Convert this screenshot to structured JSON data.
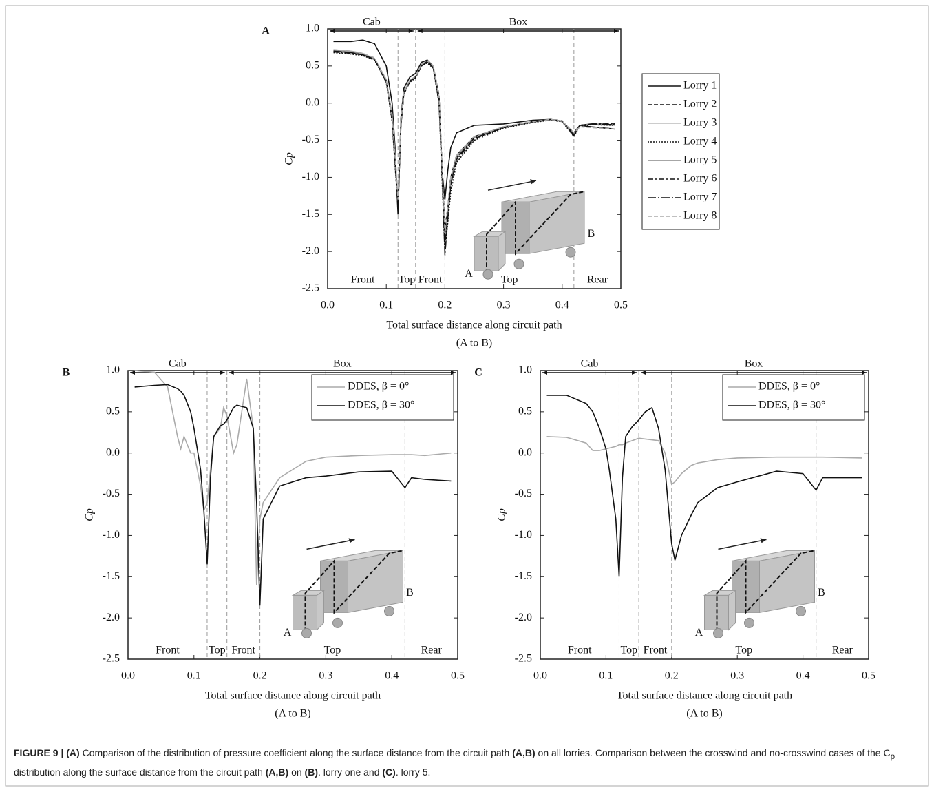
{
  "chart_data": [
    {
      "type": "line",
      "panel": "A",
      "ylabel": "Cp",
      "xlabel": [
        "Total surface distance along circuit path",
        "(A to B)"
      ],
      "xlim": [
        0,
        0.5
      ],
      "xticks": [
        {
          "value": 0,
          "label": "0.0"
        },
        0.1,
        0.2,
        0.3,
        0.4,
        0.5
      ],
      "ylim": [
        -2.5,
        1
      ],
      "yticks": [
        {
          "value": -2.5,
          "label": "-2.5"
        },
        {
          "value": -2,
          "label": "-2.0"
        },
        {
          "value": -1.5,
          "label": "-1.5"
        },
        {
          "value": -1,
          "label": "-1.0"
        },
        {
          "value": -0.5,
          "label": "-0.5"
        },
        {
          "value": 0,
          "label": "0.0"
        },
        0.5,
        {
          "value": 1,
          "label": "1.0"
        }
      ],
      "legend": "outside-right",
      "top_sections": [
        {
          "label": "Cab",
          "start": 0,
          "end": 0.15
        },
        {
          "label": "Box",
          "start": 0.15,
          "end": 0.5
        }
      ],
      "bottom_sections": [
        {
          "label": "Front",
          "start": 0,
          "end": 0.12
        },
        {
          "label": "Top",
          "start": 0.12,
          "end": 0.15
        },
        {
          "label": "Front",
          "start": 0.15,
          "end": 0.2
        },
        {
          "label": "Top",
          "start": 0.2,
          "end": 0.42
        },
        {
          "label": "Rear",
          "start": 0.42,
          "end": 0.5
        }
      ],
      "inset_labels": [
        "A",
        "B"
      ],
      "x": [
        0.01,
        0.04,
        0.06,
        0.08,
        0.1,
        0.11,
        0.115,
        0.12,
        0.125,
        0.13,
        0.14,
        0.15,
        0.16,
        0.17,
        0.18,
        0.19,
        0.195,
        0.2,
        0.205,
        0.21,
        0.22,
        0.25,
        0.3,
        0.35,
        0.38,
        0.4,
        0.42,
        0.43,
        0.45,
        0.49
      ],
      "series": [
        {
          "name": "Lorry 1",
          "color": "#111111",
          "dash": "solid",
          "values": [
            0.83,
            0.83,
            0.85,
            0.8,
            0.5,
            0.0,
            -0.6,
            -1.5,
            -0.2,
            0.2,
            0.35,
            0.4,
            0.55,
            0.58,
            0.5,
            0.0,
            -0.9,
            -1.3,
            -0.9,
            -0.6,
            -0.4,
            -0.3,
            -0.28,
            -0.23,
            -0.22,
            -0.25,
            -0.4,
            -0.3,
            -0.32,
            -0.35
          ]
        },
        {
          "name": "Lorry 2",
          "color": "#111111",
          "dash": "dashed",
          "values": [
            0.7,
            0.68,
            0.66,
            0.6,
            0.3,
            -0.2,
            -0.8,
            -1.35,
            -0.3,
            0.15,
            0.3,
            0.35,
            0.5,
            0.55,
            0.5,
            0.1,
            -0.8,
            -1.7,
            -1.4,
            -1.0,
            -0.7,
            -0.45,
            -0.32,
            -0.25,
            -0.22,
            -0.24,
            -0.42,
            -0.3,
            -0.28,
            -0.28
          ]
        },
        {
          "name": "Lorry 3",
          "color": "#bbbbbb",
          "dash": "solid",
          "values": [
            0.72,
            0.7,
            0.67,
            0.6,
            0.32,
            -0.15,
            -0.7,
            -1.3,
            -0.25,
            0.15,
            0.3,
            0.36,
            0.52,
            0.56,
            0.48,
            0.05,
            -0.9,
            -1.8,
            -1.5,
            -1.1,
            -0.75,
            -0.47,
            -0.33,
            -0.26,
            -0.22,
            -0.25,
            -0.44,
            -0.3,
            -0.29,
            -0.3
          ]
        },
        {
          "name": "Lorry 4",
          "color": "#111111",
          "dash": "dotted",
          "values": [
            0.68,
            0.66,
            0.64,
            0.58,
            0.28,
            -0.25,
            -0.85,
            -1.4,
            -0.3,
            0.12,
            0.28,
            0.34,
            0.5,
            0.54,
            0.47,
            0.0,
            -1.0,
            -2.0,
            -1.6,
            -1.2,
            -0.8,
            -0.5,
            -0.34,
            -0.26,
            -0.23,
            -0.25,
            -0.45,
            -0.31,
            -0.29,
            -0.3
          ]
        },
        {
          "name": "Lorry 5",
          "color": "#888888",
          "dash": "solid",
          "values": [
            0.71,
            0.69,
            0.66,
            0.6,
            0.3,
            -0.2,
            -0.75,
            -1.38,
            -0.28,
            0.14,
            0.3,
            0.36,
            0.52,
            0.57,
            0.5,
            0.08,
            -0.85,
            -1.85,
            -1.45,
            -1.05,
            -0.72,
            -0.46,
            -0.32,
            -0.25,
            -0.22,
            -0.24,
            -0.43,
            -0.3,
            -0.28,
            -0.29
          ]
        },
        {
          "name": "Lorry 6",
          "color": "#111111",
          "dash": "dashdot",
          "values": [
            0.69,
            0.67,
            0.65,
            0.59,
            0.29,
            -0.22,
            -0.8,
            -1.42,
            -0.3,
            0.13,
            0.29,
            0.35,
            0.51,
            0.55,
            0.49,
            0.05,
            -0.9,
            -1.9,
            -1.5,
            -1.1,
            -0.76,
            -0.48,
            -0.33,
            -0.25,
            -0.22,
            -0.24,
            -0.44,
            -0.3,
            -0.28,
            -0.28
          ]
        },
        {
          "name": "Lorry 7",
          "color": "#111111",
          "dash": "longdashdot",
          "values": [
            0.7,
            0.68,
            0.65,
            0.59,
            0.3,
            -0.2,
            -0.78,
            -1.4,
            -0.29,
            0.14,
            0.3,
            0.35,
            0.51,
            0.56,
            0.49,
            0.06,
            -0.88,
            -2.05,
            -1.55,
            -1.1,
            -0.74,
            -0.47,
            -0.33,
            -0.25,
            -0.22,
            -0.24,
            -0.43,
            -0.3,
            -0.28,
            -0.29
          ]
        },
        {
          "name": "Lorry 8",
          "color": "#aaaaaa",
          "dash": "dashed",
          "values": [
            0.72,
            0.7,
            0.67,
            0.61,
            0.31,
            -0.18,
            -0.72,
            -1.3,
            -0.26,
            0.15,
            0.31,
            0.36,
            0.52,
            0.57,
            0.5,
            0.08,
            -0.82,
            -1.75,
            -1.4,
            -1.0,
            -0.7,
            -0.45,
            -0.32,
            -0.25,
            -0.22,
            -0.24,
            -0.4,
            -0.32,
            -0.33,
            -0.35
          ]
        }
      ]
    },
    {
      "type": "line",
      "panel": "B",
      "ylabel": "Cp",
      "xlabel": [
        "Total surface distance along circuit path",
        "(A to B)"
      ],
      "xlim": [
        0,
        0.5
      ],
      "xticks": [
        {
          "value": 0,
          "label": "0.0"
        },
        0.1,
        0.2,
        0.3,
        0.4,
        0.5
      ],
      "ylim": [
        -2.5,
        1
      ],
      "yticks": [
        {
          "value": -2.5,
          "label": "-2.5"
        },
        {
          "value": -2,
          "label": "-2.0"
        },
        {
          "value": -1.5,
          "label": "-1.5"
        },
        {
          "value": -1,
          "label": "-1.0"
        },
        {
          "value": -0.5,
          "label": "-0.5"
        },
        {
          "value": 0,
          "label": "0.0"
        },
        0.5,
        {
          "value": 1,
          "label": "1.0"
        }
      ],
      "legend": "upper-right",
      "top_sections": [
        {
          "label": "Cab",
          "start": 0,
          "end": 0.15
        },
        {
          "label": "Box",
          "start": 0.15,
          "end": 0.5
        }
      ],
      "bottom_sections": [
        {
          "label": "Front",
          "start": 0,
          "end": 0.12
        },
        {
          "label": "Top",
          "start": 0.12,
          "end": 0.15
        },
        {
          "label": "Front",
          "start": 0.15,
          "end": 0.2
        },
        {
          "label": "Top",
          "start": 0.2,
          "end": 0.42
        },
        {
          "label": "Rear",
          "start": 0.42,
          "end": 0.5
        }
      ],
      "inset_labels": [
        "A",
        "B"
      ],
      "x": [
        0.01,
        0.04,
        0.06,
        0.075,
        0.08,
        0.085,
        0.095,
        0.1,
        0.11,
        0.115,
        0.12,
        0.125,
        0.13,
        0.14,
        0.145,
        0.15,
        0.16,
        0.165,
        0.18,
        0.19,
        0.195,
        0.2,
        0.205,
        0.23,
        0.27,
        0.3,
        0.35,
        0.4,
        0.42,
        0.43,
        0.45,
        0.49
      ],
      "series": [
        {
          "name": "DDES, β = 0°",
          "color": "#aaaaaa",
          "dash": "solid",
          "values": [
            1.0,
            0.98,
            0.8,
            0.2,
            0.05,
            0.2,
            0.0,
            0.0,
            -0.4,
            -0.7,
            -0.6,
            -0.2,
            0.2,
            0.3,
            0.55,
            0.45,
            0.0,
            0.1,
            0.9,
            0.3,
            -1.6,
            -0.8,
            -0.6,
            -0.3,
            -0.1,
            -0.05,
            -0.03,
            -0.02,
            -0.02,
            -0.02,
            -0.03,
            0.0
          ]
        },
        {
          "name": "DDES, β = 30°",
          "color": "#111111",
          "dash": "solid",
          "values": [
            0.8,
            0.82,
            0.83,
            0.78,
            0.75,
            0.7,
            0.5,
            0.3,
            -0.2,
            -0.7,
            -1.35,
            -0.3,
            0.2,
            0.33,
            0.35,
            0.4,
            0.55,
            0.58,
            0.55,
            0.3,
            -0.6,
            -1.85,
            -0.8,
            -0.4,
            -0.3,
            -0.28,
            -0.23,
            -0.22,
            -0.42,
            -0.3,
            -0.32,
            -0.34
          ]
        }
      ]
    },
    {
      "type": "line",
      "panel": "C",
      "ylabel": "Cp",
      "xlabel": [
        "Total surface distance along circuit path",
        "(A to B)"
      ],
      "xlim": [
        0,
        0.5
      ],
      "xticks": [
        {
          "value": 0,
          "label": "0.0"
        },
        0.1,
        0.2,
        0.3,
        0.4,
        0.5
      ],
      "ylim": [
        -2.5,
        1
      ],
      "yticks": [
        {
          "value": -2.5,
          "label": "-2.5"
        },
        {
          "value": -2,
          "label": "-2.0"
        },
        {
          "value": -1.5,
          "label": "-1.5"
        },
        {
          "value": -1,
          "label": "-1.0"
        },
        {
          "value": -0.5,
          "label": "-0.5"
        },
        {
          "value": 0,
          "label": "0.0"
        },
        0.5,
        {
          "value": 1,
          "label": "1.0"
        }
      ],
      "legend": "upper-right",
      "top_sections": [
        {
          "label": "Cab",
          "start": 0,
          "end": 0.15
        },
        {
          "label": "Box",
          "start": 0.15,
          "end": 0.5
        }
      ],
      "bottom_sections": [
        {
          "label": "Front",
          "start": 0,
          "end": 0.12
        },
        {
          "label": "Top",
          "start": 0.12,
          "end": 0.15
        },
        {
          "label": "Front",
          "start": 0.15,
          "end": 0.2
        },
        {
          "label": "Top",
          "start": 0.2,
          "end": 0.42
        },
        {
          "label": "Rear",
          "start": 0.42,
          "end": 0.5
        }
      ],
      "inset_labels": [
        "A",
        "B"
      ],
      "x": [
        0.01,
        0.04,
        0.07,
        0.08,
        0.09,
        0.1,
        0.105,
        0.115,
        0.12,
        0.125,
        0.13,
        0.14,
        0.15,
        0.16,
        0.17,
        0.18,
        0.19,
        0.2,
        0.205,
        0.215,
        0.23,
        0.24,
        0.27,
        0.3,
        0.36,
        0.4,
        0.42,
        0.43,
        0.49
      ],
      "series": [
        {
          "name": "DDES, β = 0°",
          "color": "#aaaaaa",
          "dash": "solid",
          "values": [
            0.2,
            0.19,
            0.12,
            0.03,
            0.03,
            0.05,
            0.06,
            0.08,
            0.1,
            0.1,
            0.12,
            0.15,
            0.18,
            0.17,
            0.16,
            0.15,
            0.0,
            -0.38,
            -0.35,
            -0.25,
            -0.15,
            -0.12,
            -0.08,
            -0.06,
            -0.05,
            -0.05,
            -0.05,
            -0.05,
            -0.06
          ]
        },
        {
          "name": "DDES, β = 30°",
          "color": "#111111",
          "dash": "solid",
          "values": [
            0.7,
            0.7,
            0.6,
            0.5,
            0.3,
            0.05,
            -0.2,
            -0.8,
            -1.5,
            -0.3,
            0.2,
            0.32,
            0.4,
            0.5,
            0.55,
            0.3,
            -0.2,
            -1.1,
            -1.3,
            -1.0,
            -0.75,
            -0.6,
            -0.42,
            -0.35,
            -0.22,
            -0.25,
            -0.45,
            -0.3,
            -0.3
          ]
        }
      ]
    }
  ],
  "caption": {
    "runs": [
      {
        "text": "FIGURE 9 | (A)",
        "bold": true
      },
      {
        "text": " Comparison of the distribution of pressure coefficient along the surface distance from the circuit path "
      },
      {
        "text": "(A,B)",
        "bold": true
      },
      {
        "text": " on all lorries. Comparison between the crosswind and no-crosswind cases of the C"
      },
      {
        "text": "p",
        "sub": true
      },
      {
        "text": " distribution along the surface distance from the circuit path "
      },
      {
        "text": "(A,B)",
        "bold": true
      },
      {
        "text": " on "
      },
      {
        "text": "(B)",
        "bold": true
      },
      {
        "text": ". lorry one and "
      },
      {
        "text": "(C)",
        "bold": true
      },
      {
        "text": ". lorry 5."
      }
    ]
  }
}
